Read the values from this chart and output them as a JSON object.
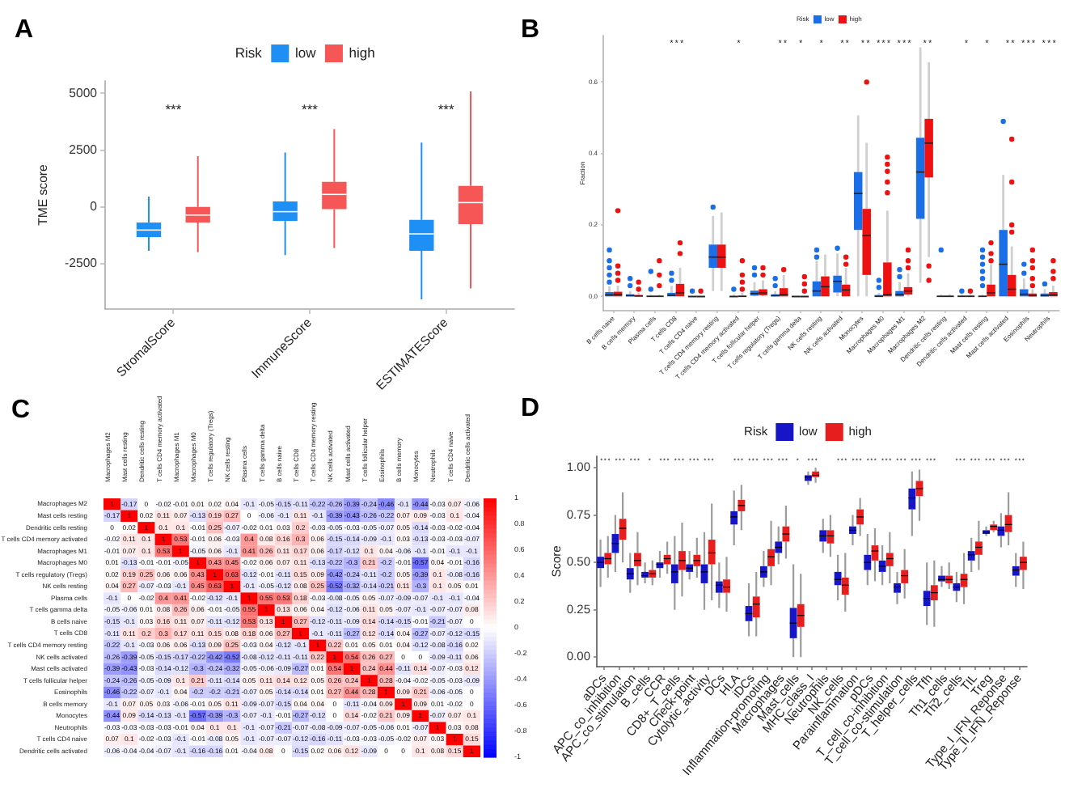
{
  "chart_data": [
    {
      "type": "box",
      "title": "A",
      "ylabel": "TME score",
      "legend": "top",
      "legend_title": "Risk",
      "categories": [
        "StromalScore",
        "ImmuneScore",
        "ESTIMATEScore"
      ],
      "series": [
        {
          "name": "low",
          "color": "#1e8ff5",
          "boxes": [
            {
              "low": -1930,
              "q1": -1330,
              "median": -1020,
              "q3": -690,
              "high": 450
            },
            {
              "low": -2120,
              "q1": -620,
              "median": -210,
              "q3": 240,
              "high": 2400
            },
            {
              "low": -4070,
              "q1": -1930,
              "median": -1190,
              "q3": -570,
              "high": 2830
            }
          ]
        },
        {
          "name": "high",
          "color": "#f65656",
          "boxes": [
            {
              "low": -2000,
              "q1": -690,
              "median": -360,
              "q3": 0,
              "high": 2240
            },
            {
              "low": -1810,
              "q1": -100,
              "median": 550,
              "q3": 1100,
              "high": 3430
            },
            {
              "low": -3590,
              "q1": -760,
              "median": 190,
              "q3": 930,
              "high": 5090
            }
          ]
        }
      ],
      "ylim": [
        -4500,
        5550
      ],
      "yticks": [
        -2500,
        0,
        2500,
        5000
      ],
      "annotations": [
        "***",
        "***",
        "***"
      ]
    },
    {
      "type": "box",
      "title": "B",
      "ylabel": "Fraction",
      "legend": "top",
      "legend_title": "Risk",
      "categories": [
        "B cells naive",
        "B cells memory",
        "Plasma cells",
        "T cells CD8",
        "T cells CD4 naive",
        "T cells CD4 memory resting",
        "T cells CD4 memory activated",
        "T cells follicular helper",
        "T cells regulatory (Tregs)",
        "T cells gamma delta",
        "NK cells resting",
        "NK cells activated",
        "Monocytes",
        "Macrophages M0",
        "Macrophages M1",
        "Macrophages M2",
        "Dendritic cells resting",
        "Dendritic cells activated",
        "Mast cells resting",
        "Mast cells activated",
        "Eosinophils",
        "Neutrophils"
      ],
      "series": [
        {
          "name": "low",
          "color": "#1a6ee8",
          "boxes": [
            {
              "low": 0,
              "q1": 0,
              "median": 0.004,
              "q3": 0.012,
              "high": 0.028,
              "outliers": [
                0.04,
                0.06,
                0.08,
                0.1,
                0.13
              ]
            },
            {
              "low": 0,
              "q1": 0,
              "median": 0.002,
              "q3": 0.006,
              "high": 0.015,
              "outliers": [
                0.03,
                0.05
              ]
            },
            {
              "low": 0,
              "q1": 0,
              "median": 0,
              "q3": 0.002,
              "high": 0.005,
              "outliers": [
                0.02,
                0.07
              ]
            },
            {
              "low": 0,
              "q1": 0,
              "median": 0.003,
              "q3": 0.01,
              "high": 0.03,
              "outliers": [
                0.045,
                0.065
              ]
            },
            {
              "low": 0,
              "q1": 0,
              "median": 0,
              "q3": 0,
              "high": 0,
              "outliers": [
                0.015
              ]
            },
            {
              "low": 0.015,
              "q1": 0.08,
              "median": 0.11,
              "q3": 0.145,
              "high": 0.225,
              "outliers": [
                0.25
              ]
            },
            {
              "low": 0,
              "q1": 0,
              "median": 0,
              "q3": 0,
              "high": 0.005,
              "outliers": [
                0.02
              ]
            },
            {
              "low": 0,
              "q1": 0.002,
              "median": 0.008,
              "q3": 0.016,
              "high": 0.04,
              "outliers": [
                0.06,
                0.08
              ]
            },
            {
              "low": 0,
              "q1": 0,
              "median": 0.002,
              "q3": 0.006,
              "high": 0.015,
              "outliers": [
                0.03,
                0.05
              ]
            },
            {
              "low": 0,
              "q1": 0,
              "median": 0,
              "q3": 0,
              "high": 0
            },
            {
              "low": 0,
              "q1": 0,
              "median": 0.015,
              "q3": 0.042,
              "high": 0.1,
              "outliers": [
                0.11,
                0.13
              ]
            },
            {
              "low": 0,
              "q1": 0.011,
              "median": 0.042,
              "q3": 0.058,
              "high": 0.12,
              "outliers": [
                0.135
              ]
            },
            {
              "low": 0,
              "q1": 0.186,
              "median": 0.288,
              "q3": 0.348,
              "high": 0.507
            },
            {
              "low": 0,
              "q1": 0,
              "median": 0,
              "q3": 0.004,
              "high": 0.01,
              "outliers": [
                0.025,
                0.045
              ]
            },
            {
              "low": 0,
              "q1": 0,
              "median": 0.005,
              "q3": 0.015,
              "high": 0.04,
              "outliers": [
                0.055,
                0.075
              ]
            },
            {
              "low": 0.038,
              "q1": 0.217,
              "median": 0.348,
              "q3": 0.444,
              "high": 0.697
            },
            {
              "low": 0,
              "q1": 0,
              "median": 0,
              "q3": 0.002,
              "high": 0.005,
              "outliers": [
                0.13
              ]
            },
            {
              "low": 0,
              "q1": 0,
              "median": 0,
              "q3": 0.002,
              "high": 0.005,
              "outliers": [
                0.015
              ]
            },
            {
              "low": 0,
              "q1": 0,
              "median": 0,
              "q3": 0.002,
              "high": 0.005,
              "outliers": [
                0.03,
                0.05,
                0.07,
                0.09,
                0.11,
                0.13
              ]
            },
            {
              "low": 0,
              "q1": 0,
              "median": 0.09,
              "q3": 0.186,
              "high": 0.34,
              "outliers": [
                0.49
              ]
            },
            {
              "low": 0,
              "q1": 0,
              "median": 0.006,
              "q3": 0.02,
              "high": 0.05,
              "outliers": [
                0.065,
                0.09
              ]
            },
            {
              "low": 0,
              "q1": 0,
              "median": 0.002,
              "q3": 0.008,
              "high": 0.02,
              "outliers": [
                0.035
              ]
            }
          ]
        },
        {
          "name": "high",
          "color": "#ee1111",
          "boxes": [
            {
              "low": 0,
              "q1": 0,
              "median": 0.005,
              "q3": 0.013,
              "high": 0.03,
              "outliers": [
                0.045,
                0.065,
                0.085,
                0.24
              ]
            },
            {
              "low": 0,
              "q1": 0,
              "median": 0.001,
              "q3": 0.004,
              "high": 0.01,
              "outliers": [
                0.02,
                0.04
              ]
            },
            {
              "low": 0,
              "q1": 0,
              "median": 0,
              "q3": 0.002,
              "high": 0.005,
              "outliers": [
                0.03,
                0.06,
                0.1
              ]
            },
            {
              "low": 0,
              "q1": 0,
              "median": 0.01,
              "q3": 0.035,
              "high": 0.08,
              "outliers": [
                0.12,
                0.15
              ]
            },
            {
              "low": 0,
              "q1": 0,
              "median": 0,
              "q3": 0,
              "high": 0,
              "outliers": [
                0.015
              ]
            },
            {
              "low": 0.015,
              "q1": 0.08,
              "median": 0.11,
              "q3": 0.145,
              "high": 0.235
            },
            {
              "low": 0,
              "q1": 0,
              "median": 0,
              "q3": 0.002,
              "high": 0.01,
              "outliers": [
                0.02,
                0.04,
                0.06,
                0.1
              ]
            },
            {
              "low": 0,
              "q1": 0.003,
              "median": 0.01,
              "q3": 0.02,
              "high": 0.045,
              "outliers": [
                0.06,
                0.08
              ]
            },
            {
              "low": 0,
              "q1": 0,
              "median": 0.005,
              "q3": 0.023,
              "high": 0.06,
              "outliers": [
                0.075
              ]
            },
            {
              "low": 0,
              "q1": 0,
              "median": 0,
              "q3": 0,
              "high": 0,
              "outliers": [
                0.015,
                0.035,
                0.055
              ]
            },
            {
              "low": 0,
              "q1": 0,
              "median": 0.027,
              "q3": 0.056,
              "high": 0.117
            },
            {
              "low": 0,
              "q1": 0,
              "median": 0.018,
              "q3": 0.033,
              "high": 0.08,
              "outliers": [
                0.09,
                0.11
              ]
            },
            {
              "low": 0,
              "q1": 0.06,
              "median": 0.17,
              "q3": 0.245,
              "high": 0.43,
              "outliers": [
                0.6
              ]
            },
            {
              "low": 0,
              "q1": 0,
              "median": 0.005,
              "q3": 0.095,
              "high": 0.24,
              "outliers": [
                0.29,
                0.32,
                0.35,
                0.37,
                0.39
              ]
            },
            {
              "low": 0,
              "q1": 0.005,
              "median": 0.015,
              "q3": 0.026,
              "high": 0.065,
              "outliers": [
                0.08,
                0.1,
                0.13
              ]
            },
            {
              "low": 0.11,
              "q1": 0.333,
              "median": 0.429,
              "q3": 0.497,
              "high": 0.655,
              "outliers": [
                0.045,
                0.085
              ]
            },
            {
              "low": 0,
              "q1": 0,
              "median": 0,
              "q3": 0.002,
              "high": 0.006
            },
            {
              "low": 0,
              "q1": 0,
              "median": 0,
              "q3": 0.002,
              "high": 0.006,
              "outliers": [
                0.015
              ]
            },
            {
              "low": 0,
              "q1": 0,
              "median": 0.01,
              "q3": 0.033,
              "high": 0.09,
              "outliers": [
                0.1,
                0.12,
                0.15
              ]
            },
            {
              "low": 0,
              "q1": 0,
              "median": 0.02,
              "q3": 0.06,
              "high": 0.14,
              "outliers": [
                0.18,
                0.2,
                0.32,
                0.44
              ]
            },
            {
              "low": 0,
              "q1": 0,
              "median": 0.002,
              "q3": 0.008,
              "high": 0.02,
              "outliers": [
                0.03,
                0.05,
                0.08,
                0.1,
                0.13
              ]
            },
            {
              "low": 0,
              "q1": 0,
              "median": 0.004,
              "q3": 0.012,
              "high": 0.03,
              "outliers": [
                0.05,
                0.07,
                0.1
              ]
            }
          ]
        }
      ],
      "ylim": [
        -0.04,
        0.73
      ],
      "yticks": [
        {
          "value": 0,
          "label": "0.0"
        },
        0.2,
        0.4,
        0.6
      ],
      "annotations": [
        "***          *       **  *   *   **  ** *** ***  **      *   *   ** *** ***"
      ]
    },
    {
      "type": "heatmap",
      "title": "C",
      "data_labels": true,
      "clim": [
        -1,
        1
      ],
      "cticks": [
        -1,
        -0.8,
        -0.6,
        -0.4,
        -0.2,
        0,
        0.2,
        0.4,
        0.6,
        0.8,
        1
      ],
      "categories": [
        "Macrophages M2",
        "Mast cells resting",
        "Dendritic cells resting",
        "T cells CD4 memory activated",
        "Macrophages M1",
        "Macrophages M0",
        "T cells regulatory (Tregs)",
        "NK cells resting",
        "Plasma cells",
        "T cells gamma delta",
        "B cells naive",
        "T cells CD8",
        "T cells CD4 memory resting",
        "NK cells activated",
        "Mast cells activated",
        "T cells follicular helper",
        "Eosinophils",
        "B cells memory",
        "Monocytes",
        "Neutrophils",
        "T cells CD4 naive",
        "Dendritic cells activated"
      ],
      "y_categories": [
        "Macrophages M2",
        "Mast cells resting",
        "Dendritic cells resting",
        "T cells CD4 memory activated",
        "Macrophages M1",
        "Macrophages M0",
        "T cells regulatory (Tregs)",
        "NK cells resting",
        "Plasma cells",
        "T cells gamma delta",
        "B cells naive",
        "T cells CD8",
        "T cells CD4 memory resting",
        "NK cells activated",
        "Mast cells activated",
        "T cells follicular helper",
        "Eosinophils",
        "B cells memory",
        "Monocytes",
        "Neutrophils",
        "T cells CD4 naive",
        "Dendritic cells activated"
      ],
      "cells": [
        [
          1,
          -0.17,
          0,
          -0.02,
          -0.01,
          0.01,
          0.02,
          0.04,
          -0.1,
          -0.05,
          -0.15,
          -0.11,
          -0.22,
          -0.26,
          -0.39,
          -0.24,
          -0.46,
          -0.1,
          -0.44,
          -0.03,
          0.07,
          -0.06
        ],
        [
          -0.17,
          1,
          0.02,
          0.11,
          0.07,
          -0.13,
          0.19,
          0.27,
          0,
          -0.06,
          -0.1,
          0.11,
          -0.1,
          -0.39,
          -0.43,
          -0.26,
          -0.22,
          0.07,
          0.09,
          -0.03,
          0.1,
          -0.04
        ],
        [
          0,
          0.02,
          1,
          0.1,
          0.1,
          -0.01,
          0.25,
          -0.07,
          -0.02,
          0.01,
          0.03,
          0.2,
          -0.03,
          -0.05,
          -0.03,
          -0.05,
          -0.07,
          0.05,
          -0.14,
          -0.03,
          -0.02,
          -0.04
        ],
        [
          -0.02,
          0.11,
          0.1,
          1,
          0.53,
          -0.01,
          0.06,
          -0.03,
          0.4,
          0.08,
          0.16,
          0.3,
          0.06,
          -0.15,
          -0.14,
          -0.09,
          -0.1,
          0.03,
          -0.13,
          -0.03,
          -0.03,
          -0.07
        ],
        [
          -0.01,
          0.07,
          0.1,
          0.53,
          1,
          -0.05,
          0.06,
          -0.1,
          0.41,
          0.26,
          0.11,
          0.17,
          0.06,
          -0.17,
          -0.12,
          0.1,
          0.04,
          -0.06,
          -0.1,
          -0.01,
          -0.1,
          -0.1
        ],
        [
          0.01,
          -0.13,
          -0.01,
          -0.01,
          -0.05,
          1,
          0.43,
          0.45,
          -0.02,
          0.06,
          0.07,
          0.11,
          -0.13,
          -0.22,
          -0.3,
          0.21,
          -0.2,
          -0.01,
          -0.57,
          0.04,
          -0.01,
          -0.16
        ],
        [
          0.02,
          0.19,
          0.25,
          0.06,
          0.06,
          0.43,
          1,
          0.63,
          -0.12,
          -0.01,
          -0.11,
          0.15,
          0.09,
          -0.42,
          -0.24,
          -0.11,
          -0.2,
          0.05,
          -0.39,
          0.1,
          -0.08,
          -0.16
        ],
        [
          0.04,
          0.27,
          -0.07,
          -0.03,
          -0.1,
          0.45,
          0.63,
          1,
          -0.1,
          -0.05,
          -0.12,
          0.08,
          0.25,
          -0.52,
          -0.32,
          -0.14,
          -0.21,
          0.11,
          -0.3,
          0.1,
          0.05,
          0.01
        ],
        [
          -0.1,
          0,
          -0.02,
          0.4,
          0.41,
          -0.02,
          -0.12,
          -0.1,
          1,
          0.55,
          0.53,
          0.18,
          -0.03,
          -0.08,
          -0.05,
          0.05,
          -0.07,
          -0.09,
          -0.07,
          -0.1,
          -0.1,
          -0.04
        ],
        [
          -0.05,
          -0.06,
          0.01,
          0.08,
          0.26,
          0.06,
          -0.01,
          -0.05,
          0.55,
          1,
          0.13,
          0.06,
          0.04,
          -0.12,
          -0.06,
          0.11,
          0.05,
          -0.07,
          -0.1,
          -0.07,
          -0.07,
          0.08
        ],
        [
          -0.15,
          -0.1,
          0.03,
          0.16,
          0.11,
          0.07,
          -0.11,
          -0.12,
          0.53,
          0.13,
          1,
          0.27,
          -0.12,
          -0.11,
          -0.09,
          0.14,
          -0.14,
          -0.15,
          -0.01,
          -0.21,
          -0.07,
          0
        ],
        [
          -0.11,
          0.11,
          0.2,
          0.3,
          0.17,
          0.11,
          0.15,
          0.08,
          0.18,
          0.06,
          0.27,
          1,
          -0.1,
          -0.11,
          -0.27,
          0.12,
          -0.14,
          0.04,
          -0.27,
          -0.07,
          -0.12,
          -0.15
        ],
        [
          -0.22,
          -0.1,
          -0.03,
          0.06,
          0.06,
          -0.13,
          0.09,
          0.25,
          -0.03,
          0.04,
          -0.12,
          -0.1,
          1,
          0.22,
          0.01,
          0.05,
          0.01,
          0.04,
          -0.12,
          -0.08,
          -0.16,
          0.02
        ],
        [
          -0.26,
          -0.39,
          -0.05,
          -0.15,
          -0.17,
          -0.22,
          -0.42,
          -0.52,
          -0.08,
          -0.12,
          -0.11,
          -0.11,
          0.22,
          1,
          0.54,
          0.26,
          0.27,
          0,
          0,
          -0.09,
          -0.11,
          0.06
        ],
        [
          -0.39,
          -0.43,
          -0.03,
          -0.14,
          -0.12,
          -0.3,
          -0.24,
          -0.32,
          -0.05,
          -0.06,
          -0.09,
          -0.27,
          0.01,
          0.54,
          1,
          0.24,
          0.44,
          -0.11,
          0.14,
          -0.07,
          -0.03,
          0.12
        ],
        [
          -0.24,
          -0.26,
          -0.05,
          -0.09,
          0.1,
          0.21,
          -0.11,
          -0.14,
          0.05,
          0.11,
          0.14,
          0.12,
          0.05,
          0.26,
          0.24,
          1,
          0.28,
          -0.04,
          -0.02,
          -0.05,
          -0.03,
          -0.09
        ],
        [
          -0.46,
          -0.22,
          -0.07,
          -0.1,
          0.04,
          -0.2,
          -0.2,
          -0.21,
          -0.07,
          0.05,
          -0.14,
          -0.14,
          0.01,
          0.27,
          0.44,
          0.28,
          1,
          0.09,
          0.21,
          -0.06,
          -0.05,
          0
        ],
        [
          -0.1,
          0.07,
          0.05,
          0.03,
          -0.06,
          -0.01,
          0.05,
          0.11,
          -0.09,
          -0.07,
          -0.15,
          0.04,
          0.04,
          0,
          -0.11,
          -0.04,
          0.09,
          1,
          0.09,
          0.01,
          -0.02,
          0
        ],
        [
          -0.44,
          0.09,
          -0.14,
          -0.13,
          -0.1,
          -0.57,
          -0.39,
          -0.3,
          -0.07,
          -0.1,
          -0.01,
          -0.27,
          -0.12,
          0,
          0.14,
          -0.02,
          0.21,
          0.09,
          1,
          -0.07,
          0.07,
          0.1
        ],
        [
          -0.03,
          -0.03,
          -0.03,
          -0.03,
          -0.01,
          0.04,
          0.1,
          0.1,
          -0.1,
          -0.07,
          -0.21,
          -0.07,
          -0.08,
          -0.09,
          -0.07,
          -0.05,
          -0.06,
          0.01,
          -0.07,
          1,
          0.03,
          0.08
        ],
        [
          0.07,
          0.1,
          -0.02,
          -0.03,
          -0.1,
          -0.01,
          -0.08,
          0.05,
          -0.1,
          -0.07,
          -0.07,
          -0.12,
          -0.16,
          -0.11,
          -0.03,
          -0.03,
          -0.05,
          -0.02,
          0.07,
          0.03,
          1,
          0.15
        ],
        [
          -0.06,
          -0.04,
          -0.04,
          -0.07,
          -0.1,
          -0.16,
          -0.16,
          0.01,
          -0.04,
          0.08,
          0,
          -0.15,
          0.02,
          0.06,
          0.12,
          -0.09,
          0,
          0,
          0.1,
          0.08,
          0.15,
          1
        ]
      ]
    },
    {
      "type": "box",
      "title": "D",
      "ylabel": "Score",
      "legend": "top",
      "legend_title": "Risk",
      "categories": [
        "aDCs",
        "APC_co_inhibition",
        "APC_co_stimulation",
        "B_cells",
        "CCR",
        "CD8+_T_cells",
        "Check-point",
        "Cytolytic_activity",
        "DCs",
        "HLA",
        "iDCs",
        "Inflammation-promoting",
        "Macrophages",
        "Mast_cells",
        "MHC_class_I",
        "Neutrophils",
        "NK_cells",
        "Parainflammation",
        "pDCs",
        "T_cell_co-inhibition",
        "T_cell_co-stimulation",
        "T_helper_cells",
        "Tfh",
        "Th1_cells",
        "Th2_cells",
        "TIL",
        "Treg",
        "Type_I_IFN_Reponse",
        "Type_II_IFN_Reponse"
      ],
      "series": [
        {
          "name": "low",
          "color": "#1616c8",
          "boxes": [
            {
              "low": 0.37,
              "q1": 0.47,
              "median": 0.5,
              "q3": 0.53,
              "high": 0.62
            },
            {
              "low": 0.45,
              "q1": 0.55,
              "median": 0.6,
              "q3": 0.65,
              "high": 0.75
            },
            {
              "low": 0.34,
              "q1": 0.41,
              "median": 0.44,
              "q3": 0.47,
              "high": 0.55
            },
            {
              "low": 0.39,
              "q1": 0.42,
              "median": 0.43,
              "q3": 0.45,
              "high": 0.5
            },
            {
              "low": 0.42,
              "q1": 0.47,
              "median": 0.49,
              "q3": 0.5,
              "high": 0.56
            },
            {
              "low": 0.25,
              "q1": 0.39,
              "median": 0.45,
              "q3": 0.49,
              "high": 0.64
            },
            {
              "low": 0.41,
              "q1": 0.45,
              "median": 0.47,
              "q3": 0.49,
              "high": 0.56
            },
            {
              "low": 0.25,
              "q1": 0.39,
              "median": 0.45,
              "q3": 0.49,
              "high": 0.66
            },
            {
              "low": 0.26,
              "q1": 0.34,
              "median": 0.38,
              "q3": 0.4,
              "high": 0.5
            },
            {
              "low": 0.59,
              "q1": 0.7,
              "median": 0.74,
              "q3": 0.77,
              "high": 0.88
            },
            {
              "low": 0.11,
              "q1": 0.19,
              "median": 0.23,
              "q3": 0.27,
              "high": 0.39
            },
            {
              "low": 0.37,
              "q1": 0.42,
              "median": 0.45,
              "q3": 0.48,
              "high": 0.56
            },
            {
              "low": 0.49,
              "q1": 0.55,
              "median": 0.58,
              "q3": 0.61,
              "high": 0.69
            },
            {
              "low": 0,
              "q1": 0.1,
              "median": 0.18,
              "q3": 0.26,
              "high": 0.49
            },
            {
              "low": 0.91,
              "q1": 0.93,
              "median": 0.95,
              "q3": 0.96,
              "high": 0.98
            },
            {
              "low": 0.55,
              "q1": 0.61,
              "median": 0.64,
              "q3": 0.67,
              "high": 0.73
            },
            {
              "low": 0.3,
              "q1": 0.38,
              "median": 0.41,
              "q3": 0.45,
              "high": 0.54
            },
            {
              "low": 0.59,
              "q1": 0.65,
              "median": 0.67,
              "q3": 0.69,
              "high": 0.75
            },
            {
              "low": 0.38,
              "q1": 0.46,
              "median": 0.5,
              "q3": 0.54,
              "high": 0.65
            },
            {
              "low": 0.38,
              "q1": 0.45,
              "median": 0.48,
              "q3": 0.51,
              "high": 0.59
            },
            {
              "low": 0.28,
              "q1": 0.34,
              "median": 0.37,
              "q3": 0.39,
              "high": 0.45
            },
            {
              "low": 0.64,
              "q1": 0.78,
              "median": 0.84,
              "q3": 0.89,
              "high": 0.98
            },
            {
              "low": 0.17,
              "q1": 0.27,
              "median": 0.31,
              "q3": 0.35,
              "high": 0.5
            },
            {
              "low": 0.37,
              "q1": 0.4,
              "median": 0.41,
              "q3": 0.43,
              "high": 0.48
            },
            {
              "low": 0.29,
              "q1": 0.35,
              "median": 0.37,
              "q3": 0.39,
              "high": 0.45
            },
            {
              "low": 0.45,
              "q1": 0.51,
              "median": 0.54,
              "q3": 0.56,
              "high": 0.63
            },
            {
              "low": 0.64,
              "q1": 0.65,
              "median": 0.66,
              "q3": 0.67,
              "high": 0.69
            },
            {
              "low": 0.58,
              "q1": 0.64,
              "median": 0.67,
              "q3": 0.69,
              "high": 0.76
            },
            {
              "low": 0.37,
              "q1": 0.43,
              "median": 0.46,
              "q3": 0.48,
              "high": 0.55
            }
          ]
        },
        {
          "name": "high",
          "color": "#e61e1e",
          "boxes": [
            {
              "low": 0.42,
              "q1": 0.49,
              "median": 0.52,
              "q3": 0.55,
              "high": 0.64
            },
            {
              "low": 0.5,
              "q1": 0.62,
              "median": 0.68,
              "q3": 0.73,
              "high": 0.87
            },
            {
              "low": 0.38,
              "q1": 0.48,
              "median": 0.51,
              "q3": 0.55,
              "high": 0.66
            },
            {
              "low": 0.38,
              "q1": 0.42,
              "median": 0.44,
              "q3": 0.46,
              "high": 0.51
            },
            {
              "low": 0.44,
              "q1": 0.49,
              "median": 0.52,
              "q3": 0.54,
              "high": 0.61
            },
            {
              "low": 0.32,
              "q1": 0.46,
              "median": 0.51,
              "q3": 0.56,
              "high": 0.71
            },
            {
              "low": 0.42,
              "q1": 0.48,
              "median": 0.51,
              "q3": 0.54,
              "high": 0.63
            },
            {
              "low": 0.3,
              "q1": 0.49,
              "median": 0.55,
              "q3": 0.62,
              "high": 0.81
            },
            {
              "low": 0.24,
              "q1": 0.34,
              "median": 0.37,
              "q3": 0.41,
              "high": 0.53
            },
            {
              "low": 0.67,
              "q1": 0.77,
              "median": 0.8,
              "q3": 0.83,
              "high": 0.91
            },
            {
              "low": 0.11,
              "q1": 0.21,
              "median": 0.28,
              "q3": 0.32,
              "high": 0.45
            },
            {
              "low": 0.38,
              "q1": 0.48,
              "median": 0.53,
              "q3": 0.57,
              "high": 0.72
            },
            {
              "low": 0.52,
              "q1": 0.61,
              "median": 0.65,
              "q3": 0.69,
              "high": 0.8
            },
            {
              "low": 0,
              "q1": 0.16,
              "median": 0.22,
              "q3": 0.28,
              "high": 0.44
            },
            {
              "low": 0.92,
              "q1": 0.95,
              "median": 0.96,
              "q3": 0.98,
              "high": 1
            },
            {
              "low": 0.53,
              "q1": 0.6,
              "median": 0.64,
              "q3": 0.67,
              "high": 0.75
            },
            {
              "low": 0.24,
              "q1": 0.33,
              "median": 0.38,
              "q3": 0.42,
              "high": 0.55
            },
            {
              "low": 0.64,
              "q1": 0.7,
              "median": 0.74,
              "q3": 0.78,
              "high": 0.84
            },
            {
              "low": 0.4,
              "q1": 0.51,
              "median": 0.56,
              "q3": 0.59,
              "high": 0.68
            },
            {
              "low": 0.39,
              "q1": 0.48,
              "median": 0.52,
              "q3": 0.55,
              "high": 0.66
            },
            {
              "low": 0.31,
              "q1": 0.39,
              "median": 0.43,
              "q3": 0.46,
              "high": 0.57
            },
            {
              "low": 0.72,
              "q1": 0.85,
              "median": 0.89,
              "q3": 0.93,
              "high": 0.99
            },
            {
              "low": 0.16,
              "q1": 0.3,
              "median": 0.34,
              "q3": 0.38,
              "high": 0.51
            },
            {
              "low": 0.36,
              "q1": 0.39,
              "median": 0.41,
              "q3": 0.43,
              "high": 0.5
            },
            {
              "low": 0.28,
              "q1": 0.37,
              "median": 0.41,
              "q3": 0.44,
              "high": 0.55
            },
            {
              "low": 0.46,
              "q1": 0.54,
              "median": 0.58,
              "q3": 0.61,
              "high": 0.72
            },
            {
              "low": 0.66,
              "q1": 0.67,
              "median": 0.69,
              "q3": 0.7,
              "high": 0.72
            },
            {
              "low": 0.59,
              "q1": 0.66,
              "median": 0.7,
              "q3": 0.75,
              "high": 0.87
            },
            {
              "low": 0.36,
              "q1": 0.46,
              "median": 0.5,
              "q3": 0.53,
              "high": 0.61
            }
          ]
        }
      ],
      "ylim": [
        -0.05,
        1.06
      ],
      "yticks": [
        {
          "value": 0,
          "label": "0.00"
        },
        0.25,
        {
          "value": 0.5,
          "label": "0.50"
        },
        0.75,
        {
          "value": 1,
          "label": "1.00"
        }
      ],
      "annotations": [
        "*** *** ***  *  *** *** *** ***     *** *** *** ***  *  ***     *** *** *** *** *** *** ***     *** *** *** *** ***"
      ]
    }
  ]
}
